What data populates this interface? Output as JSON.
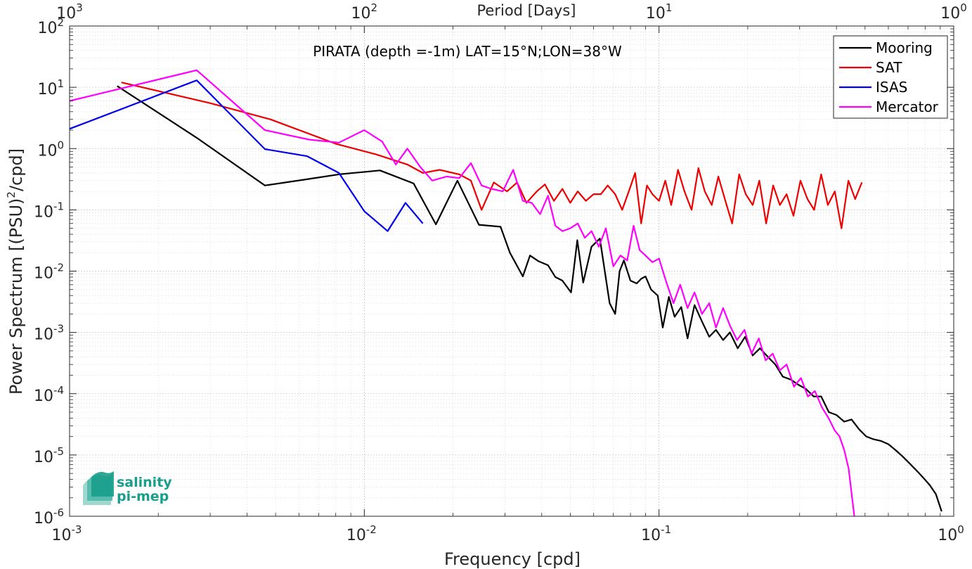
{
  "chart_data": {
    "type": "line",
    "title": "PIRATA (depth =-1m) LAT=15°N;LON=38°W",
    "xlabel": "Frequency [cpd]",
    "ylabel_main": "Power Spectrum [(PSU)",
    "ylabel_sup": "2",
    "ylabel_tail": "/cpd]",
    "top_xlabel": "Period [Days]",
    "x_scale": "log",
    "y_scale": "log",
    "xlim": [
      0.001,
      1
    ],
    "ylim": [
      1e-06,
      100
    ],
    "grid": true,
    "legend_position": "top-right",
    "x_ticks": [
      {
        "base": "10",
        "exp": "-3",
        "value": 0.001
      },
      {
        "base": "10",
        "exp": "-2",
        "value": 0.01
      },
      {
        "base": "10",
        "exp": "-1",
        "value": 0.1
      },
      {
        "base": "10",
        "exp": "0",
        "value": 1
      }
    ],
    "y_ticks": [
      {
        "base": "10",
        "exp": "-6",
        "value": 1e-06
      },
      {
        "base": "10",
        "exp": "-5",
        "value": 1e-05
      },
      {
        "base": "10",
        "exp": "-4",
        "value": 0.0001
      },
      {
        "base": "10",
        "exp": "-3",
        "value": 0.001
      },
      {
        "base": "10",
        "exp": "-2",
        "value": 0.01
      },
      {
        "base": "10",
        "exp": "-1",
        "value": 0.1
      },
      {
        "base": "10",
        "exp": "0",
        "value": 1
      },
      {
        "base": "10",
        "exp": "1",
        "value": 10
      },
      {
        "base": "10",
        "exp": "2",
        "value": 100
      }
    ],
    "top_ticks": [
      {
        "base": "10",
        "exp": "3",
        "value": 1000
      },
      {
        "base": "10",
        "exp": "2",
        "value": 100
      },
      {
        "base": "10",
        "exp": "1",
        "value": 10
      },
      {
        "base": "10",
        "exp": "0",
        "value": 1
      }
    ],
    "series": [
      {
        "name": "Mooring",
        "color": "#000000",
        "x": [
          0.00145,
          0.0027,
          0.0046,
          0.0065,
          0.0082,
          0.0113,
          0.0147,
          0.0175,
          0.0207,
          0.0245,
          0.029,
          0.0312,
          0.0345,
          0.0365,
          0.039,
          0.042,
          0.0445,
          0.047,
          0.0503,
          0.0528,
          0.0553,
          0.059,
          0.063,
          0.068,
          0.071,
          0.0735,
          0.076,
          0.08,
          0.084,
          0.087,
          0.09,
          0.094,
          0.099,
          0.103,
          0.108,
          0.113,
          0.119,
          0.125,
          0.132,
          0.14,
          0.148,
          0.156,
          0.165,
          0.174,
          0.185,
          0.196,
          0.208,
          0.22,
          0.234,
          0.248,
          0.263,
          0.28,
          0.297,
          0.315,
          0.335,
          0.355,
          0.377,
          0.4,
          0.425,
          0.45,
          0.478,
          0.505,
          0.535,
          0.565,
          0.6,
          0.635,
          0.67,
          0.71,
          0.75,
          0.79,
          0.83,
          0.87,
          0.91
        ],
        "y": [
          10.5,
          1.5,
          0.25,
          0.32,
          0.38,
          0.44,
          0.27,
          0.058,
          0.3,
          0.057,
          0.053,
          0.02,
          0.0082,
          0.018,
          0.0145,
          0.0125,
          0.008,
          0.007,
          0.0045,
          0.032,
          0.0065,
          0.025,
          0.034,
          0.003,
          0.002,
          0.01,
          0.015,
          0.007,
          0.0063,
          0.0075,
          0.0082,
          0.005,
          0.004,
          0.0012,
          0.0038,
          0.0018,
          0.0026,
          0.0008,
          0.0028,
          0.0015,
          0.00085,
          0.0011,
          0.00075,
          0.001,
          0.00055,
          0.00085,
          0.00042,
          0.00055,
          0.0004,
          0.0003,
          0.00019,
          0.00017,
          0.00014,
          0.00012,
          9e-05,
          9e-05,
          5e-05,
          4.5e-05,
          3.5e-05,
          3.8e-05,
          2.6e-05,
          2e-05,
          1.8e-05,
          1.7e-05,
          1.5e-05,
          1.2e-05,
          9.5e-06,
          7.2e-06,
          5.5e-06,
          4.2e-06,
          3.2e-06,
          2.3e-06,
          1.2e-06
        ]
      },
      {
        "name": "SAT",
        "color": "#ee0000",
        "x": [
          0.0015,
          0.003,
          0.0048,
          0.008,
          0.011,
          0.014,
          0.0158,
          0.018,
          0.021,
          0.023,
          0.025,
          0.0275,
          0.0305,
          0.033,
          0.0355,
          0.0385,
          0.041,
          0.044,
          0.047,
          0.05,
          0.053,
          0.0565,
          0.06,
          0.0635,
          0.067,
          0.071,
          0.075,
          0.079,
          0.083,
          0.087,
          0.091,
          0.095,
          0.1,
          0.105,
          0.11,
          0.116,
          0.122,
          0.129,
          0.136,
          0.143,
          0.151,
          0.159,
          0.168,
          0.177,
          0.187,
          0.197,
          0.208,
          0.219,
          0.231,
          0.244,
          0.257,
          0.271,
          0.286,
          0.302,
          0.319,
          0.336,
          0.355,
          0.374,
          0.395,
          0.416,
          0.439,
          0.463,
          0.488
        ],
        "y": [
          12,
          5.5,
          3.0,
          1.2,
          0.8,
          0.55,
          0.4,
          0.45,
          0.38,
          0.3,
          0.1,
          0.28,
          0.2,
          0.28,
          0.13,
          0.2,
          0.26,
          0.14,
          0.22,
          0.13,
          0.2,
          0.14,
          0.18,
          0.18,
          0.25,
          0.18,
          0.1,
          0.2,
          0.4,
          0.06,
          0.25,
          0.18,
          0.14,
          0.3,
          0.12,
          0.45,
          0.2,
          0.1,
          0.48,
          0.2,
          0.12,
          0.35,
          0.14,
          0.06,
          0.38,
          0.18,
          0.12,
          0.3,
          0.06,
          0.25,
          0.12,
          0.18,
          0.08,
          0.3,
          0.15,
          0.1,
          0.38,
          0.12,
          0.2,
          0.05,
          0.3,
          0.15,
          0.28
        ]
      },
      {
        "name": "ISAS",
        "color": "#0000ee",
        "x": [
          0.001,
          0.0027,
          0.0046,
          0.0064,
          0.0082,
          0.01,
          0.012,
          0.0138,
          0.0158
        ],
        "y": [
          2.1,
          13,
          0.98,
          0.75,
          0.4,
          0.095,
          0.045,
          0.13,
          0.06
        ]
      },
      {
        "name": "Mercator",
        "color": "#ff00ff",
        "x": [
          0.001,
          0.0027,
          0.0046,
          0.0065,
          0.0082,
          0.01,
          0.0115,
          0.0128,
          0.014,
          0.0155,
          0.017,
          0.019,
          0.021,
          0.023,
          0.025,
          0.027,
          0.0295,
          0.032,
          0.0345,
          0.037,
          0.0395,
          0.042,
          0.0445,
          0.047,
          0.05,
          0.053,
          0.056,
          0.059,
          0.0625,
          0.066,
          0.07,
          0.074,
          0.078,
          0.082,
          0.086,
          0.09,
          0.095,
          0.1,
          0.106,
          0.112,
          0.118,
          0.125,
          0.132,
          0.14,
          0.148,
          0.156,
          0.165,
          0.174,
          0.184,
          0.195,
          0.206,
          0.218,
          0.23,
          0.243,
          0.257,
          0.271,
          0.287,
          0.303,
          0.32,
          0.338,
          0.357,
          0.376,
          0.395,
          0.41,
          0.425,
          0.44,
          0.452,
          0.46
        ],
        "y": [
          6.0,
          19,
          2.0,
          1.4,
          1.25,
          2.0,
          1.3,
          0.55,
          1.0,
          0.5,
          0.3,
          0.35,
          0.33,
          0.58,
          0.25,
          0.22,
          0.2,
          0.45,
          0.14,
          0.13,
          0.085,
          0.17,
          0.055,
          0.045,
          0.05,
          0.06,
          0.035,
          0.045,
          0.025,
          0.05,
          0.012,
          0.018,
          0.015,
          0.055,
          0.022,
          0.018,
          0.014,
          0.016,
          0.0065,
          0.003,
          0.006,
          0.0025,
          0.0045,
          0.002,
          0.003,
          0.0012,
          0.0025,
          0.0013,
          0.00075,
          0.0011,
          0.00045,
          0.0008,
          0.00035,
          0.00045,
          0.00024,
          0.0003,
          0.00013,
          0.00018,
          9e-05,
          0.00011,
          6e-05,
          4e-05,
          2.5e-05,
          2e-05,
          1.2e-05,
          6e-06,
          2e-06,
          9e-07
        ]
      }
    ]
  },
  "logo": {
    "line1": "salinity",
    "line2": "pi-mep",
    "color": "#1a9e8c"
  }
}
